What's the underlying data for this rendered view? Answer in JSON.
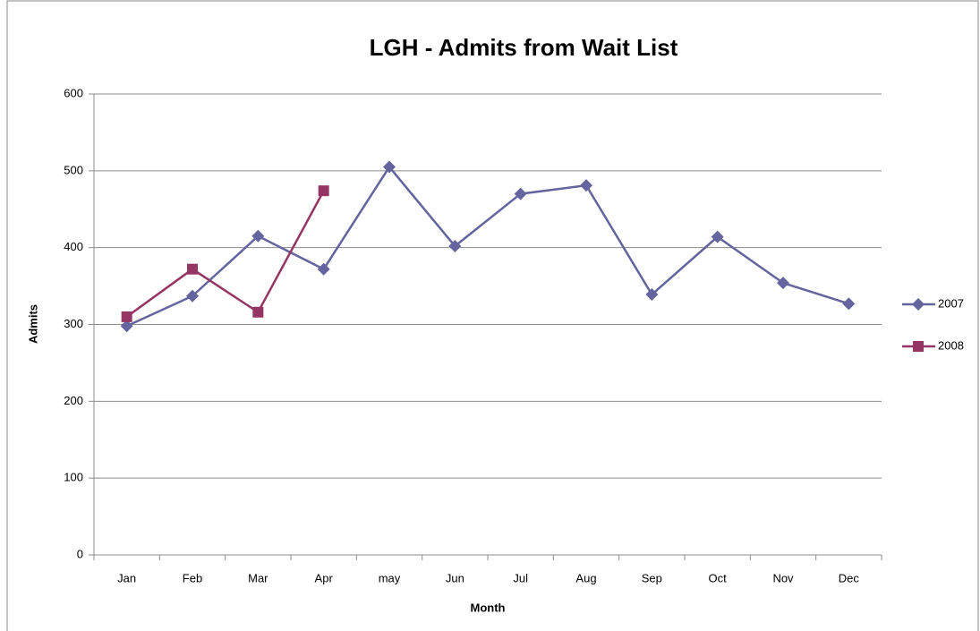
{
  "chart_data": {
    "type": "line",
    "title": "LGH - Admits from Wait List",
    "x_label": "Month",
    "y_label": "Admits",
    "categories": [
      "Jan",
      "Feb",
      "Mar",
      "Apr",
      "may",
      "Jun",
      "Jul",
      "Aug",
      "Sep",
      "Oct",
      "Nov",
      "Dec"
    ],
    "series": [
      {
        "name": "2007",
        "color": "#64649e",
        "marker": "diamond",
        "values": [
          298,
          337,
          415,
          372,
          505,
          402,
          470,
          481,
          339,
          414,
          354,
          327
        ]
      },
      {
        "name": "2008",
        "color": "#953563",
        "marker": "square",
        "values": [
          310,
          372,
          316,
          474,
          null,
          null,
          null,
          null,
          null,
          null,
          null,
          null
        ]
      }
    ],
    "ylim": [
      0,
      600
    ],
    "yticks": [
      0,
      100,
      200,
      300,
      400,
      500,
      600
    ],
    "grid": true,
    "legend": "right"
  }
}
